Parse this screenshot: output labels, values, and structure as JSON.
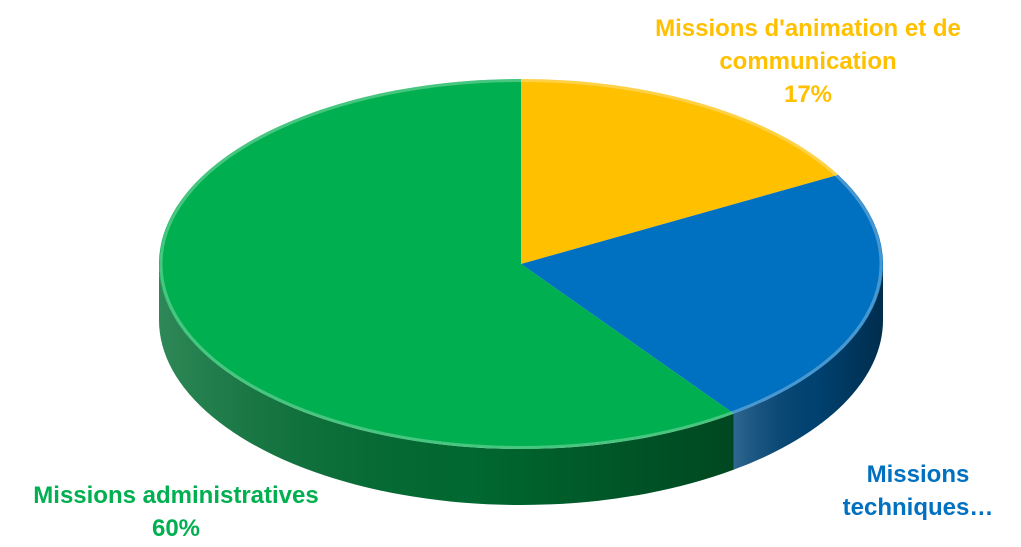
{
  "chart_data": {
    "type": "pie",
    "style": "3d",
    "title": "",
    "slices": [
      {
        "label_lines": [
          "Missions d'animation et de",
          "communication"
        ],
        "percent_text": "17%",
        "value": 17,
        "color": "#FFC000"
      },
      {
        "label_lines": [
          "Missions",
          "techniques…"
        ],
        "percent_text": "",
        "value": 23,
        "color": "#0070C0"
      },
      {
        "label_lines": [
          "Missions administratives"
        ],
        "percent_text": "60%",
        "value": 60,
        "color": "#00B050"
      }
    ],
    "legend": "none"
  }
}
